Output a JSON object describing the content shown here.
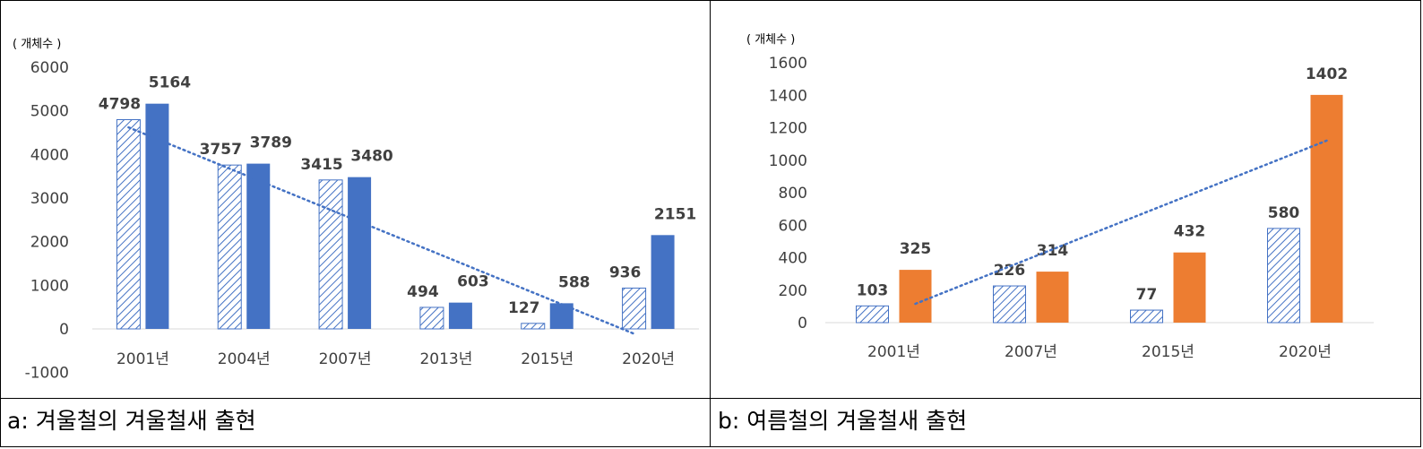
{
  "chart_data": [
    {
      "type": "bar",
      "unit_label": "( 개체수 )",
      "categories": [
        "2001년",
        "2004년",
        "2007년",
        "2013년",
        "2015년",
        "2020년"
      ],
      "yticks": [
        "6000",
        "5000",
        "4000",
        "3000",
        "2000",
        "1000",
        "0",
        "-1000"
      ],
      "ylim": [
        -1000,
        6000
      ],
      "series": [
        {
          "values": [
            4798,
            3757,
            3415,
            494,
            127,
            936
          ],
          "pattern": "hatched",
          "color": "#4472c4"
        },
        {
          "values": [
            5164,
            3789,
            3480,
            603,
            588,
            2151
          ],
          "pattern": "solid",
          "color": "#4472c4"
        }
      ],
      "trendline": {
        "series": 0,
        "style": "dotted",
        "color": "#4472c4"
      },
      "caption": "a: 겨울철의 겨울철새 출현"
    },
    {
      "type": "bar",
      "unit_label": "( 개체수 )",
      "categories": [
        "2001년",
        "2007년",
        "2015년",
        "2020년"
      ],
      "yticks": [
        "1600",
        "1400",
        "1200",
        "1000",
        "800",
        "600",
        "400",
        "200",
        "0"
      ],
      "ylim": [
        0,
        1600
      ],
      "series": [
        {
          "values": [
            103,
            226,
            77,
            580
          ],
          "pattern": "hatched",
          "color": "#4472c4"
        },
        {
          "values": [
            325,
            314,
            432,
            1402
          ],
          "pattern": "solid",
          "color": "#ed7d31"
        }
      ],
      "trendline": {
        "series": 1,
        "style": "dotted",
        "color": "#4472c4"
      },
      "caption": "b: 여름철의 겨울철새 출현"
    }
  ]
}
